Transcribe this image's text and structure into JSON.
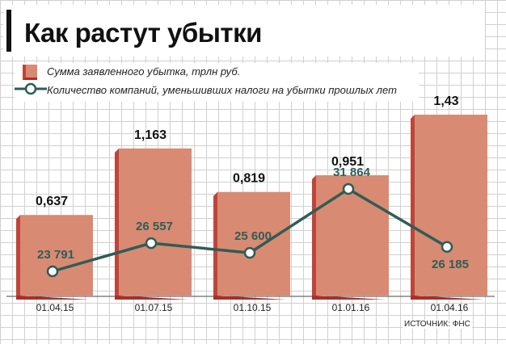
{
  "title": "Как растут убытки",
  "source": "ИСТОЧНИК: ФНС",
  "colors": {
    "bar_front": "#d98a72",
    "bar_side": "#c0443a",
    "bar_top": "#a8302a",
    "line": "#2e5d57",
    "line_label": "#2e5d57"
  },
  "chart_data": {
    "type": "bar",
    "categories": [
      "01.04.15",
      "01.07.15",
      "01.10.15",
      "01.01.16",
      "01.04.16"
    ],
    "series": [
      {
        "name": "Сумма заявленного убытка, трлн руб.",
        "type": "bar",
        "values": [
          0.637,
          1.163,
          0.819,
          0.951,
          1.43
        ],
        "labels": [
          "0,637",
          "1,163",
          "0,819",
          "0,951",
          "1,43"
        ]
      },
      {
        "name": "Количество компаний, уменьшивших налоги на убытки прошлых лет",
        "type": "line",
        "values": [
          23791,
          26557,
          25600,
          31864,
          26185
        ],
        "labels": [
          "23 791",
          "26 557",
          "25 600",
          "31 864",
          "26 185"
        ]
      }
    ]
  }
}
